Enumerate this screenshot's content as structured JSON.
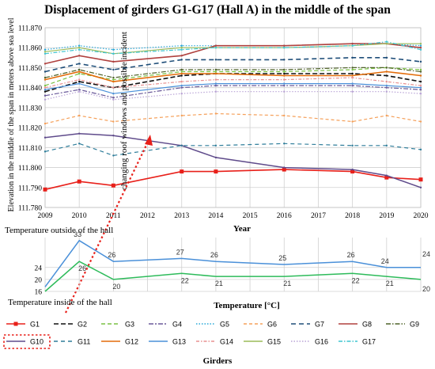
{
  "colors": {
    "G1": "#e8201a",
    "G2": "#111111",
    "G3": "#7ac143",
    "G4": "#6a5a9a",
    "G5": "#29a8d8",
    "G6": "#f5a05a",
    "G7": "#1f4e79",
    "G8": "#b0413e",
    "G9": "#4f6228",
    "G10": "#5f4b8b",
    "G11": "#2e7d9a",
    "G12": "#e36c0a",
    "G13": "#4a90d9",
    "G14": "#e89090",
    "G15": "#9bbb59",
    "G16": "#b9a3d6",
    "G17": "#3fc5d0",
    "outside": "#4a90d9",
    "inside": "#2dbb5a",
    "annotation": "#e8201a"
  },
  "chart_data": [
    {
      "type": "line",
      "title": "Displacement of girders G1-G17 (Hall A) in the middle of the span",
      "xlabel": "Year",
      "ylabel": "Elevation in the middle of the span in meters above sea level",
      "x_ticks": [
        "2009",
        "2010",
        "2011",
        "2012",
        "2013",
        "2014",
        "2015",
        "2016",
        "2017",
        "2018",
        "2019",
        "2020"
      ],
      "y_ticks": [
        "111.780",
        "111.790",
        "111.800",
        "111.810",
        "111.820",
        "111.830",
        "111.840",
        "111.850",
        "111.860",
        "111.870"
      ],
      "ylim": [
        111.78,
        111.87
      ],
      "xlim": [
        2009,
        2020
      ],
      "grid": true,
      "annotation": "changing roof windows and possible incident",
      "series": [
        {
          "name": "G1",
          "x": [
            2009,
            2010,
            2011,
            2013,
            2014,
            2016,
            2018,
            2019,
            2020
          ],
          "values": [
            111.789,
            111.793,
            111.791,
            111.798,
            111.798,
            111.799,
            111.798,
            111.795,
            111.794
          ]
        },
        {
          "name": "G2",
          "x": [
            2009,
            2010,
            2011,
            2013,
            2014,
            2016,
            2018,
            2019,
            2020
          ],
          "values": [
            111.838,
            111.843,
            111.84,
            111.846,
            111.847,
            111.847,
            111.847,
            111.846,
            111.843
          ]
        },
        {
          "name": "G3",
          "x": [
            2009,
            2010,
            2011,
            2013,
            2014,
            2016,
            2018,
            2019,
            2020
          ],
          "values": [
            111.841,
            111.847,
            111.844,
            111.848,
            111.848,
            111.848,
            111.849,
            111.85,
            111.849
          ]
        },
        {
          "name": "G4",
          "x": [
            2009,
            2010,
            2011,
            2013,
            2014,
            2016,
            2018,
            2019,
            2020
          ],
          "values": [
            111.836,
            111.839,
            111.835,
            111.84,
            111.841,
            111.841,
            111.841,
            111.84,
            111.839
          ]
        },
        {
          "name": "G5",
          "x": [
            2009,
            2010,
            2011,
            2013,
            2014,
            2016,
            2018,
            2019,
            2020
          ],
          "values": [
            111.859,
            111.861,
            111.859,
            111.861,
            111.861,
            111.861,
            111.862,
            111.862,
            111.861
          ]
        },
        {
          "name": "G6",
          "x": [
            2009,
            2010,
            2011,
            2013,
            2014,
            2016,
            2018,
            2019,
            2020
          ],
          "values": [
            111.822,
            111.826,
            111.823,
            111.826,
            111.827,
            111.826,
            111.823,
            111.826,
            111.823
          ]
        },
        {
          "name": "G7",
          "x": [
            2009,
            2010,
            2011,
            2013,
            2014,
            2016,
            2018,
            2019,
            2020
          ],
          "values": [
            111.848,
            111.852,
            111.849,
            111.854,
            111.854,
            111.854,
            111.855,
            111.855,
            111.853
          ]
        },
        {
          "name": "G8",
          "x": [
            2009,
            2010,
            2011,
            2013,
            2014,
            2016,
            2018,
            2019,
            2020
          ],
          "values": [
            111.852,
            111.856,
            111.853,
            111.856,
            111.861,
            111.861,
            111.862,
            111.862,
            111.86
          ]
        },
        {
          "name": "G9",
          "x": [
            2009,
            2010,
            2011,
            2013,
            2014,
            2016,
            2018,
            2019,
            2020
          ],
          "values": [
            111.845,
            111.849,
            111.845,
            111.849,
            111.849,
            111.849,
            111.85,
            111.85,
            111.848
          ]
        },
        {
          "name": "G10",
          "x": [
            2009,
            2010,
            2011,
            2013,
            2014,
            2016,
            2018,
            2019,
            2020
          ],
          "values": [
            111.815,
            111.817,
            111.816,
            111.811,
            111.805,
            111.8,
            111.799,
            111.796,
            111.79
          ]
        },
        {
          "name": "G11",
          "x": [
            2009,
            2010,
            2011,
            2013,
            2014,
            2016,
            2018,
            2019,
            2020
          ],
          "values": [
            111.808,
            111.812,
            111.806,
            111.811,
            111.811,
            111.812,
            111.811,
            111.811,
            111.809
          ]
        },
        {
          "name": "G12",
          "x": [
            2009,
            2010,
            2011,
            2013,
            2014,
            2016,
            2018,
            2019,
            2020
          ],
          "values": [
            111.844,
            111.848,
            111.843,
            111.847,
            111.847,
            111.846,
            111.846,
            111.848,
            111.846
          ]
        },
        {
          "name": "G13",
          "x": [
            2009,
            2010,
            2011,
            2013,
            2014,
            2016,
            2018,
            2019,
            2020
          ],
          "values": [
            111.839,
            111.842,
            111.837,
            111.841,
            111.842,
            111.842,
            111.842,
            111.841,
            111.84
          ]
        },
        {
          "name": "G14",
          "x": [
            2009,
            2010,
            2011,
            2013,
            2014,
            2016,
            2018,
            2019,
            2020
          ],
          "values": [
            111.84,
            111.844,
            111.84,
            111.843,
            111.844,
            111.844,
            111.845,
            111.843,
            111.841
          ]
        },
        {
          "name": "G15",
          "x": [
            2009,
            2010,
            2011,
            2013,
            2014,
            2016,
            2018,
            2019,
            2020
          ],
          "values": [
            111.858,
            111.86,
            111.857,
            111.86,
            111.86,
            111.86,
            111.861,
            111.862,
            111.862
          ]
        },
        {
          "name": "G16",
          "x": [
            2009,
            2010,
            2011,
            2013,
            2014,
            2016,
            2018,
            2019,
            2020
          ],
          "values": [
            111.834,
            111.838,
            111.834,
            111.837,
            111.838,
            111.838,
            111.838,
            111.838,
            111.837
          ]
        },
        {
          "name": "G17",
          "x": [
            2009,
            2010,
            2011,
            2013,
            2014,
            2016,
            2018,
            2019,
            2020
          ],
          "values": [
            111.857,
            111.859,
            111.857,
            111.859,
            111.86,
            111.86,
            111.861,
            111.863,
            111.859
          ]
        }
      ]
    },
    {
      "type": "line",
      "xlabel": "Temperature [°C]",
      "y_ticks": [
        "16",
        "20",
        "24"
      ],
      "ylim": [
        16,
        34
      ],
      "xlim": [
        2009,
        2020
      ],
      "labels": {
        "outside": "Temperature outside of the hall",
        "inside": "Temperature inside of the hall",
        "top_axis_right": "24",
        "bottom_axis_right": "20"
      },
      "series": [
        {
          "name": "Temperature outside of the hall",
          "x": [
            2009,
            2010,
            2011,
            2013,
            2014,
            2016,
            2018,
            2019,
            2020
          ],
          "values": [
            17.5,
            33,
            26,
            27,
            26,
            25,
            26,
            24,
            24
          ],
          "label_x": [
            2010,
            2011,
            2013,
            2014,
            2016,
            2018,
            2019
          ],
          "labels": [
            "33",
            "26",
            "27",
            "26",
            "25",
            "26",
            "24"
          ]
        },
        {
          "name": "Temperature inside of the hall",
          "x": [
            2009,
            2010,
            2011,
            2013,
            2014,
            2016,
            2018,
            2019,
            2020
          ],
          "values": [
            16,
            26,
            20,
            22,
            21,
            21,
            22,
            21,
            20
          ],
          "label_x": [
            2010,
            2011,
            2013,
            2014,
            2016,
            2018,
            2019
          ],
          "labels": [
            "26",
            "20",
            "22",
            "21",
            "21",
            "22",
            "21"
          ]
        }
      ]
    }
  ],
  "legend": {
    "title": "Girders",
    "items": [
      "G1",
      "G2",
      "G3",
      "G4",
      "G5",
      "G6",
      "G7",
      "G8",
      "G9",
      "G10",
      "G11",
      "G12",
      "G13",
      "G14",
      "G15",
      "G16",
      "G17"
    ]
  }
}
